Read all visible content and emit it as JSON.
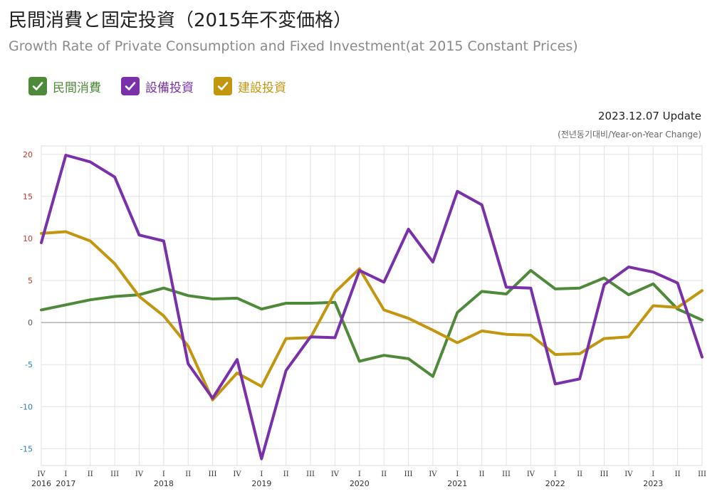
{
  "header": {
    "title": "民間消費と固定投資（2015年不変価格）",
    "subtitle": "Growth Rate of Private Consumption and Fixed Investment(at 2015 Constant Prices)",
    "update": "2023.12.07 Update",
    "unit": "(전년동기대비/Year-on-Year Change)"
  },
  "legend": [
    {
      "label": "民間消費",
      "color": "#4e8a3a",
      "icon": "check-icon"
    },
    {
      "label": "設備投資",
      "color": "#7a30a8",
      "icon": "check-icon"
    },
    {
      "label": "建設投資",
      "color": "#c2960e",
      "icon": "check-icon"
    }
  ],
  "chart_data": {
    "type": "line",
    "title": "民間消費と固定投資（2015年不変価格）",
    "ylim": [
      -17,
      21
    ],
    "yticks": [
      "20",
      "15",
      "10",
      "5",
      "0",
      "-5",
      "-10",
      "-15"
    ],
    "ytick_values": [
      20,
      15,
      10,
      5,
      0,
      -5,
      -10,
      -15
    ],
    "grid": true,
    "quarters": [
      "IV",
      "I",
      "II",
      "III",
      "IV",
      "I",
      "II",
      "III",
      "IV",
      "I",
      "II",
      "III",
      "IV",
      "I",
      "II",
      "III",
      "IV",
      "I",
      "II",
      "III",
      "IV",
      "I",
      "II",
      "III",
      "IV",
      "I",
      "II",
      "III"
    ],
    "years": [
      "2016",
      "2017",
      "",
      "",
      "",
      "2018",
      "",
      "",
      "",
      "2019",
      "",
      "",
      "",
      "2020",
      "",
      "",
      "",
      "2021",
      "",
      "",
      "",
      "2022",
      "",
      "",
      "",
      "2023",
      "",
      ""
    ],
    "series": [
      {
        "name": "民間消費",
        "color": "#4e8a3a",
        "values": [
          1.5,
          2.1,
          2.7,
          3.1,
          3.3,
          4.1,
          3.2,
          2.8,
          2.9,
          1.6,
          2.3,
          2.3,
          2.4,
          -4.6,
          -3.9,
          -4.3,
          -6.4,
          1.2,
          3.7,
          3.4,
          6.2,
          4.0,
          4.1,
          5.3,
          3.3,
          4.6,
          1.6,
          0.3
        ]
      },
      {
        "name": "設備投資",
        "color": "#7a30a8",
        "values": [
          9.5,
          19.9,
          19.1,
          17.3,
          10.4,
          9.7,
          -4.9,
          -9.0,
          -4.4,
          -16.2,
          -5.7,
          -1.7,
          -1.8,
          6.2,
          4.8,
          11.1,
          7.2,
          15.6,
          14.0,
          4.2,
          4.1,
          -7.3,
          -6.7,
          4.5,
          6.6,
          6.0,
          4.7,
          -4.1
        ]
      },
      {
        "name": "建設投資",
        "color": "#c2960e",
        "values": [
          10.6,
          10.8,
          9.7,
          7.0,
          3.1,
          0.8,
          -2.8,
          -9.2,
          -6.0,
          -7.6,
          -1.9,
          -1.8,
          3.6,
          6.4,
          1.5,
          0.5,
          -0.9,
          -2.4,
          -1.0,
          -1.4,
          -1.5,
          -3.8,
          -3.7,
          -1.9,
          -1.7,
          2.0,
          1.8,
          3.8
        ]
      }
    ]
  }
}
